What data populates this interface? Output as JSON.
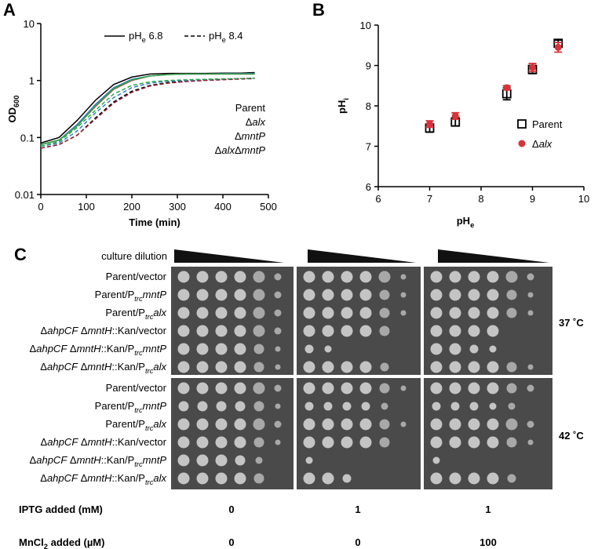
{
  "chart_data": [
    {
      "type": "line",
      "panel_label": "A",
      "xlabel": "Time (min)",
      "ylabel": [
        {
          "t": "OD"
        },
        {
          "t": "600",
          "sub": true
        }
      ],
      "xlim": [
        0,
        500
      ],
      "xticks": [
        0,
        100,
        200,
        300,
        400,
        500
      ],
      "ylim": [
        0.01,
        10
      ],
      "yticks": [
        0.01,
        0.1,
        1,
        10
      ],
      "ylog": true,
      "x": [
        0,
        40,
        80,
        120,
        160,
        200,
        240,
        280,
        320,
        360,
        400,
        440,
        470
      ],
      "series": [
        {
          "color": "#000000",
          "dash": false,
          "values": [
            0.08,
            0.1,
            0.2,
            0.45,
            0.85,
            1.15,
            1.3,
            1.33,
            1.33,
            1.33,
            1.35,
            1.35,
            1.38
          ]
        },
        {
          "color": "#3a7cc8",
          "dash": false,
          "values": [
            0.075,
            0.09,
            0.17,
            0.38,
            0.75,
            1.05,
            1.2,
            1.28,
            1.3,
            1.3,
            1.32,
            1.32,
            1.33
          ]
        },
        {
          "color": "#d8323a",
          "dash": false,
          "values": [
            0.075,
            0.09,
            0.16,
            0.35,
            0.7,
            1.0,
            1.2,
            1.28,
            1.3,
            1.3,
            1.3,
            1.3,
            1.3
          ]
        },
        {
          "color": "#2aa84a",
          "dash": false,
          "values": [
            0.075,
            0.09,
            0.16,
            0.36,
            0.72,
            1.02,
            1.2,
            1.27,
            1.3,
            1.3,
            1.3,
            1.3,
            1.3
          ]
        },
        {
          "color": "#000000",
          "dash": true,
          "values": [
            0.065,
            0.075,
            0.11,
            0.22,
            0.42,
            0.65,
            0.82,
            0.92,
            0.98,
            1.02,
            1.05,
            1.08,
            1.1
          ]
        },
        {
          "color": "#3a7cc8",
          "dash": true,
          "values": [
            0.07,
            0.08,
            0.13,
            0.27,
            0.5,
            0.75,
            0.9,
            0.97,
            1.0,
            1.03,
            1.05,
            1.08,
            1.1
          ]
        },
        {
          "color": "#9b2340",
          "dash": true,
          "values": [
            0.065,
            0.075,
            0.11,
            0.21,
            0.4,
            0.62,
            0.8,
            0.9,
            0.96,
            1.0,
            1.03,
            1.06,
            1.08
          ]
        },
        {
          "color": "#2aa84a",
          "dash": true,
          "values": [
            0.07,
            0.085,
            0.15,
            0.3,
            0.58,
            0.82,
            0.95,
            1.0,
            1.03,
            1.05,
            1.07,
            1.08,
            1.1
          ]
        }
      ],
      "ph_legend": [
        {
          "dash": false,
          "label": [
            {
              "t": "pH"
            },
            {
              "t": "e",
              "sub": true
            },
            {
              "t": " 6.8"
            }
          ]
        },
        {
          "dash": true,
          "label": [
            {
              "t": "pH"
            },
            {
              "t": "e",
              "sub": true
            },
            {
              "t": " 8.4"
            }
          ]
        }
      ],
      "strain_legend": [
        {
          "color": "#3a7cc8",
          "label": [
            {
              "t": "Parent"
            }
          ]
        },
        {
          "color": "#d8323a",
          "label": [
            {
              "t": "Δ"
            },
            {
              "t": "alx",
              "i": true
            }
          ]
        },
        {
          "color": "#2aa84a",
          "label": [
            {
              "t": "Δ"
            },
            {
              "t": "mntP",
              "i": true
            }
          ]
        },
        {
          "color": "#000000",
          "label": [
            {
              "t": "Δ"
            },
            {
              "t": "alx",
              "i": true
            },
            {
              "t": "Δ"
            },
            {
              "t": "mntP",
              "i": true
            }
          ]
        }
      ]
    },
    {
      "type": "scatter",
      "panel_label": "B",
      "xlabel": [
        {
          "t": "pH"
        },
        {
          "t": "e",
          "sub": true
        }
      ],
      "ylabel": [
        {
          "t": "pH"
        },
        {
          "t": "i",
          "sub": true
        }
      ],
      "xlim": [
        6,
        10
      ],
      "xticks": [
        6,
        7,
        8,
        9,
        10
      ],
      "ylim": [
        6,
        10
      ],
      "yticks": [
        6,
        7,
        8,
        9,
        10
      ],
      "series": [
        {
          "name": [
            {
              "t": "Parent"
            }
          ],
          "color": "#000000",
          "marker": "open-square",
          "x": [
            7,
            7.5,
            8.5,
            9,
            9.5
          ],
          "values": [
            7.45,
            7.6,
            8.3,
            8.9,
            9.55
          ],
          "errors": [
            0.1,
            0.1,
            0.15,
            0.1,
            0.08
          ]
        },
        {
          "name": [
            {
              "t": "Δ"
            },
            {
              "t": "alx",
              "i": true
            }
          ],
          "color": "#d8323a",
          "marker": "circle",
          "x": [
            7,
            7.5,
            8.5,
            9,
            9.5
          ],
          "values": [
            7.55,
            7.75,
            8.45,
            8.95,
            9.45
          ],
          "errors": [
            0.08,
            0.08,
            0.05,
            0.1,
            0.12
          ]
        }
      ]
    }
  ],
  "panel_c": {
    "panel_label": "C",
    "dilution_label": "culture dilution",
    "row_groups": [
      {
        "temperature": "37 ˚C",
        "rows": [
          [
            {
              "t": "Parent/vector"
            }
          ],
          [
            {
              "t": "Parent/P"
            },
            {
              "t": "trc",
              "sub": true,
              "i": true
            },
            {
              "t": "mntP",
              "i": true
            }
          ],
          [
            {
              "t": "Parent/P"
            },
            {
              "t": "trc",
              "sub": true,
              "i": true
            },
            {
              "t": "alx",
              "i": true
            }
          ],
          [
            {
              "t": "Δ"
            },
            {
              "t": "ahpCF",
              "i": true
            },
            {
              "t": " Δ"
            },
            {
              "t": "mntH",
              "i": true
            },
            {
              "t": "::Kan/vector"
            }
          ],
          [
            {
              "t": "Δ"
            },
            {
              "t": "ahpCF",
              "i": true
            },
            {
              "t": " Δ"
            },
            {
              "t": "mntH",
              "i": true
            },
            {
              "t": "::Kan/P"
            },
            {
              "t": "trc",
              "sub": true,
              "i": true
            },
            {
              "t": "mntP",
              "i": true
            }
          ],
          [
            {
              "t": "Δ"
            },
            {
              "t": "ahpCF",
              "i": true
            },
            {
              "t": " Δ"
            },
            {
              "t": "mntH",
              "i": true
            },
            {
              "t": "::Kan/P"
            },
            {
              "t": "trc",
              "sub": true,
              "i": true
            },
            {
              "t": "alx",
              "i": true
            }
          ]
        ]
      },
      {
        "temperature": "42 ˚C",
        "rows": [
          [
            {
              "t": "Parent/vector"
            }
          ],
          [
            {
              "t": "Parent/P"
            },
            {
              "t": "trc",
              "sub": true,
              "i": true
            },
            {
              "t": "mntP",
              "i": true
            }
          ],
          [
            {
              "t": "Parent/P"
            },
            {
              "t": "trc",
              "sub": true,
              "i": true
            },
            {
              "t": "alx",
              "i": true
            }
          ],
          [
            {
              "t": "Δ"
            },
            {
              "t": "ahpCF",
              "i": true
            },
            {
              "t": " Δ"
            },
            {
              "t": "mntH",
              "i": true
            },
            {
              "t": "::Kan/vector"
            }
          ],
          [
            {
              "t": "Δ"
            },
            {
              "t": "ahpCF",
              "i": true
            },
            {
              "t": " Δ"
            },
            {
              "t": "mntH",
              "i": true
            },
            {
              "t": "::Kan/P"
            },
            {
              "t": "trc",
              "sub": true,
              "i": true
            },
            {
              "t": "mntP",
              "i": true
            }
          ],
          [
            {
              "t": "Δ"
            },
            {
              "t": "ahpCF",
              "i": true
            },
            {
              "t": " Δ"
            },
            {
              "t": "mntH",
              "i": true
            },
            {
              "t": "::Kan/P"
            },
            {
              "t": "trc",
              "sub": true,
              "i": true
            },
            {
              "t": "alx",
              "i": true
            }
          ]
        ]
      }
    ],
    "conditions": [
      {
        "label": [
          {
            "t": "IPTG added (mM)"
          }
        ],
        "values": [
          0,
          1,
          1
        ]
      },
      {
        "label": [
          {
            "t": "MnCl"
          },
          {
            "t": "2",
            "sub": true
          },
          {
            "t": " added (µM)"
          }
        ],
        "values": [
          0,
          0,
          100
        ]
      }
    ]
  }
}
